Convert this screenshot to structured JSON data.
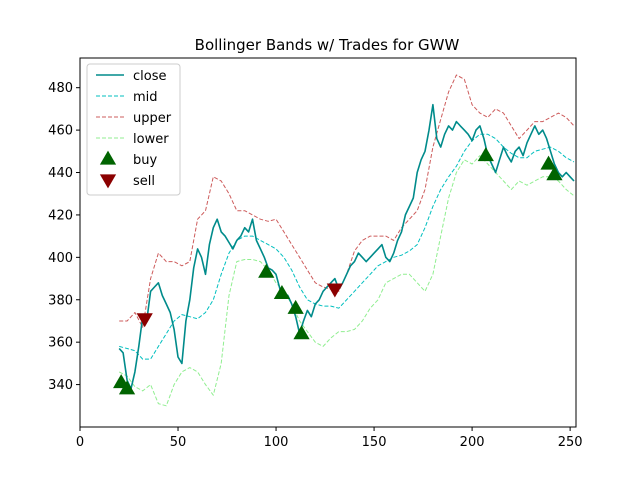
{
  "chart_data": {
    "type": "line",
    "title": "Bollinger Bands w/ Trades for GWW",
    "xlabel": "",
    "ylabel": "",
    "xlim": [
      0,
      253
    ],
    "ylim": [
      320,
      494
    ],
    "x_ticks": [
      0,
      50,
      100,
      150,
      200,
      250
    ],
    "y_ticks": [
      340,
      360,
      380,
      400,
      420,
      440,
      460,
      480
    ],
    "grid": false,
    "legend_position": "top-left",
    "series": [
      {
        "name": "close",
        "color": "#008b8b",
        "style": "solid",
        "x": [
          20,
          22,
          24,
          26,
          28,
          30,
          32,
          34,
          36,
          38,
          40,
          42,
          44,
          46,
          48,
          50,
          52,
          54,
          56,
          58,
          60,
          62,
          64,
          66,
          68,
          70,
          72,
          74,
          76,
          78,
          80,
          82,
          84,
          86,
          88,
          90,
          92,
          94,
          96,
          98,
          100,
          102,
          104,
          106,
          108,
          110,
          112,
          114,
          116,
          118,
          120,
          122,
          124,
          126,
          128,
          130,
          132,
          134,
          136,
          138,
          140,
          142,
          144,
          146,
          148,
          150,
          152,
          154,
          156,
          158,
          160,
          162,
          164,
          166,
          168,
          170,
          172,
          174,
          176,
          178,
          180,
          182,
          184,
          186,
          188,
          190,
          192,
          194,
          196,
          198,
          200,
          202,
          204,
          206,
          208,
          210,
          212,
          214,
          216,
          218,
          220,
          222,
          224,
          226,
          228,
          230,
          232,
          234,
          236,
          238,
          240,
          242,
          244,
          246,
          248,
          250,
          252
        ],
        "y": [
          357,
          355,
          342,
          338,
          346,
          358,
          372,
          370,
          384,
          386,
          388,
          382,
          378,
          374,
          366,
          353,
          350,
          370,
          380,
          395,
          404,
          400,
          392,
          406,
          414,
          418,
          412,
          410,
          407,
          404,
          408,
          410,
          414,
          412,
          418,
          408,
          404,
          400,
          395,
          394,
          392,
          385,
          383,
          382,
          378,
          372,
          364,
          370,
          375,
          372,
          378,
          380,
          384,
          386,
          388,
          390,
          385,
          388,
          392,
          396,
          398,
          402,
          400,
          398,
          400,
          402,
          404,
          406,
          400,
          398,
          402,
          408,
          412,
          420,
          424,
          428,
          440,
          446,
          450,
          460,
          472,
          456,
          452,
          458,
          462,
          460,
          464,
          462,
          460,
          458,
          455,
          460,
          462,
          456,
          448,
          444,
          440,
          446,
          452,
          448,
          445,
          450,
          452,
          448,
          454,
          458,
          462,
          458,
          460,
          456,
          450,
          444,
          440,
          438,
          440,
          438,
          436
        ]
      },
      {
        "name": "mid",
        "color": "#00bfbf",
        "style": "dashed",
        "x": [
          20,
          24,
          28,
          32,
          36,
          40,
          44,
          48,
          52,
          56,
          60,
          64,
          68,
          72,
          76,
          80,
          84,
          88,
          92,
          96,
          100,
          104,
          108,
          112,
          116,
          120,
          124,
          128,
          132,
          136,
          140,
          144,
          148,
          152,
          156,
          160,
          164,
          168,
          172,
          176,
          180,
          184,
          188,
          192,
          196,
          200,
          204,
          208,
          212,
          216,
          220,
          224,
          228,
          232,
          236,
          240,
          244,
          248,
          252
        ],
        "y": [
          358,
          357,
          356,
          352,
          352,
          358,
          364,
          370,
          373,
          372,
          371,
          374,
          380,
          392,
          402,
          408,
          410,
          410,
          408,
          406,
          404,
          400,
          394,
          386,
          380,
          378,
          377,
          377,
          376,
          380,
          384,
          388,
          392,
          396,
          398,
          400,
          401,
          403,
          406,
          414,
          424,
          432,
          438,
          443,
          450,
          455,
          458,
          458,
          456,
          452,
          449,
          447,
          447,
          450,
          451,
          452,
          450,
          447,
          445
        ]
      },
      {
        "name": "upper",
        "color": "#cd5c5c",
        "style": "dashed",
        "x": [
          20,
          24,
          28,
          32,
          36,
          40,
          44,
          48,
          52,
          56,
          60,
          64,
          68,
          72,
          76,
          80,
          84,
          88,
          92,
          96,
          100,
          104,
          108,
          112,
          116,
          120,
          124,
          128,
          132,
          136,
          140,
          144,
          148,
          152,
          156,
          160,
          164,
          168,
          172,
          176,
          180,
          184,
          188,
          192,
          196,
          200,
          204,
          208,
          212,
          216,
          220,
          224,
          228,
          232,
          236,
          240,
          244,
          248,
          252
        ],
        "y": [
          370,
          370,
          374,
          367,
          390,
          402,
          398,
          398,
          396,
          398,
          418,
          422,
          438,
          436,
          430,
          422,
          422,
          420,
          418,
          417,
          418,
          412,
          406,
          400,
          394,
          388,
          386,
          385,
          384,
          392,
          403,
          408,
          410,
          410,
          410,
          408,
          414,
          418,
          422,
          432,
          452,
          465,
          478,
          486,
          484,
          472,
          468,
          466,
          470,
          468,
          462,
          456,
          460,
          464,
          464,
          466,
          468,
          466,
          462
        ]
      },
      {
        "name": "lower",
        "color": "#90ee90",
        "style": "dashed",
        "x": [
          20,
          24,
          28,
          32,
          36,
          40,
          44,
          48,
          52,
          56,
          60,
          64,
          68,
          72,
          76,
          80,
          84,
          88,
          92,
          96,
          100,
          104,
          108,
          112,
          116,
          120,
          124,
          128,
          132,
          136,
          140,
          144,
          148,
          152,
          156,
          160,
          164,
          168,
          172,
          176,
          180,
          184,
          188,
          192,
          196,
          200,
          204,
          208,
          212,
          216,
          220,
          224,
          228,
          232,
          236,
          240,
          244,
          248,
          252
        ],
        "y": [
          346,
          344,
          339,
          337,
          340,
          331,
          330,
          340,
          346,
          348,
          346,
          340,
          335,
          350,
          382,
          398,
          399,
          399,
          398,
          394,
          388,
          384,
          378,
          370,
          365,
          360,
          358,
          362,
          365,
          365,
          366,
          370,
          376,
          380,
          388,
          390,
          392,
          392,
          388,
          384,
          392,
          410,
          428,
          440,
          446,
          444,
          448,
          444,
          440,
          436,
          432,
          436,
          434,
          436,
          438,
          438,
          436,
          432,
          429
        ]
      }
    ],
    "buy": {
      "name": "buy",
      "color": "#006400",
      "x": [
        21,
        24,
        95,
        103,
        110,
        113,
        207,
        239,
        242
      ],
      "y": [
        341,
        338,
        393,
        383,
        376,
        364,
        448,
        444,
        439
      ]
    },
    "sell": {
      "name": "sell",
      "color": "#8b0000",
      "x": [
        33,
        130
      ],
      "y": [
        371,
        385
      ]
    },
    "legend": [
      "close",
      "mid",
      "upper",
      "lower",
      "buy",
      "sell"
    ]
  }
}
